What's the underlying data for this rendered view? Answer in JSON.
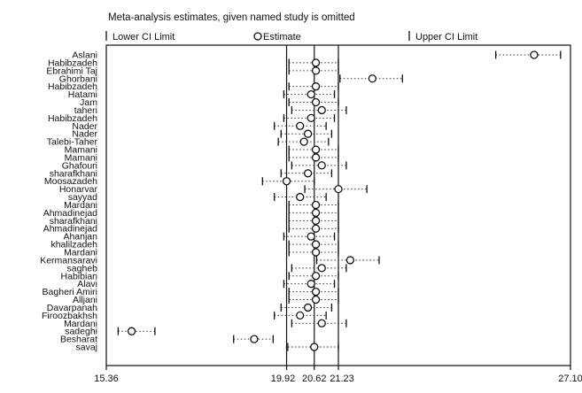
{
  "chart_data": {
    "type": "forest",
    "title": "Meta-analysis estimates, given named study is omitted",
    "legend": {
      "lower": "Lower CI Limit",
      "estimate": "Estimate",
      "upper": "Upper CI Limit"
    },
    "x_ticks": [
      {
        "value": 15.36,
        "label": "15.36"
      },
      {
        "value": 19.92,
        "label": "19.92"
      },
      {
        "value": 20.62,
        "label": "20.62"
      },
      {
        "value": 21.23,
        "label": "21.23"
      },
      {
        "value": 27.1,
        "label": "27.10"
      }
    ],
    "xlim": [
      15.36,
      27.1
    ],
    "reference_lines": [
      19.92,
      20.62,
      21.23
    ],
    "studies": [
      {
        "name": "Aslani",
        "estimate": 26.18,
        "lower": 25.21,
        "upper": 26.85
      },
      {
        "name": "Habibzadeh",
        "estimate": 20.66,
        "lower": 19.98,
        "upper": 21.23
      },
      {
        "name": "Ebrahimi Taj",
        "estimate": 20.66,
        "lower": 19.98,
        "upper": 21.23
      },
      {
        "name": "Ghorbani",
        "estimate": 22.09,
        "lower": 21.27,
        "upper": 22.85
      },
      {
        "name": "Habibzadeh",
        "estimate": 20.66,
        "lower": 19.98,
        "upper": 21.23
      },
      {
        "name": "Hatami",
        "estimate": 20.54,
        "lower": 19.85,
        "upper": 21.13
      },
      {
        "name": "Jam",
        "estimate": 20.66,
        "lower": 19.98,
        "upper": 21.23
      },
      {
        "name": "taheri",
        "estimate": 20.81,
        "lower": 20.05,
        "upper": 21.43
      },
      {
        "name": "Habibzadeh",
        "estimate": 20.54,
        "lower": 19.85,
        "upper": 21.13
      },
      {
        "name": "Nader",
        "estimate": 20.26,
        "lower": 19.61,
        "upper": 20.92
      },
      {
        "name": "Nader",
        "estimate": 20.46,
        "lower": 19.78,
        "upper": 21.06
      },
      {
        "name": "Talebi-Taher",
        "estimate": 20.36,
        "lower": 19.71,
        "upper": 20.98
      },
      {
        "name": "Mamani",
        "estimate": 20.66,
        "lower": 19.98,
        "upper": 21.23
      },
      {
        "name": "Mamani",
        "estimate": 20.66,
        "lower": 19.98,
        "upper": 21.23
      },
      {
        "name": "Ghafouri",
        "estimate": 20.81,
        "lower": 20.05,
        "upper": 21.43
      },
      {
        "name": "sharafkhani",
        "estimate": 20.46,
        "lower": 19.78,
        "upper": 21.06
      },
      {
        "name": "Moosazadeh",
        "estimate": 19.92,
        "lower": 19.31,
        "upper": 20.62
      },
      {
        "name": "Honarvar",
        "estimate": 21.23,
        "lower": 20.38,
        "upper": 21.95
      },
      {
        "name": "sayyad",
        "estimate": 20.26,
        "lower": 19.61,
        "upper": 20.92
      },
      {
        "name": "Mardani",
        "estimate": 20.66,
        "lower": 19.98,
        "upper": 21.23
      },
      {
        "name": "Ahmadinejad",
        "estimate": 20.66,
        "lower": 19.98,
        "upper": 21.23
      },
      {
        "name": "sharafkhani",
        "estimate": 20.66,
        "lower": 19.98,
        "upper": 21.23
      },
      {
        "name": "Ahmadinejad",
        "estimate": 20.66,
        "lower": 19.98,
        "upper": 21.23
      },
      {
        "name": "Ahanjan",
        "estimate": 20.54,
        "lower": 19.85,
        "upper": 21.13
      },
      {
        "name": "khalilzadeh",
        "estimate": 20.66,
        "lower": 19.98,
        "upper": 21.23
      },
      {
        "name": "Mardani",
        "estimate": 20.66,
        "lower": 19.98,
        "upper": 21.23
      },
      {
        "name": "Kermansaravi",
        "estimate": 21.53,
        "lower": 20.68,
        "upper": 22.26
      },
      {
        "name": "sagheb",
        "estimate": 20.81,
        "lower": 20.05,
        "upper": 21.43
      },
      {
        "name": "Habibian",
        "estimate": 20.66,
        "lower": 19.98,
        "upper": 21.23
      },
      {
        "name": "Alavi",
        "estimate": 20.54,
        "lower": 19.85,
        "upper": 21.13
      },
      {
        "name": "Bagheri Amiri",
        "estimate": 20.66,
        "lower": 19.98,
        "upper": 21.23
      },
      {
        "name": "Alljani",
        "estimate": 20.66,
        "lower": 19.98,
        "upper": 21.23
      },
      {
        "name": "Davarpanah",
        "estimate": 20.46,
        "lower": 19.78,
        "upper": 21.06
      },
      {
        "name": "Firoozbakhsh",
        "estimate": 20.26,
        "lower": 19.61,
        "upper": 20.92
      },
      {
        "name": "Mardani",
        "estimate": 20.81,
        "lower": 20.05,
        "upper": 21.43
      },
      {
        "name": "sadeghi",
        "estimate": 16.0,
        "lower": 15.66,
        "upper": 16.59
      },
      {
        "name": "Besharat",
        "estimate": 19.1,
        "lower": 18.58,
        "upper": 19.58
      },
      {
        "name": "savaj",
        "estimate": 20.62,
        "lower": 19.95,
        "upper": 21.23
      }
    ]
  }
}
